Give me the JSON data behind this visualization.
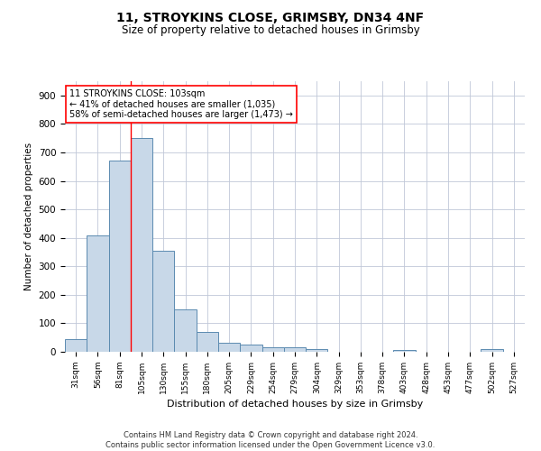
{
  "title_line1": "11, STROYKINS CLOSE, GRIMSBY, DN34 4NF",
  "title_line2": "Size of property relative to detached houses in Grimsby",
  "xlabel": "Distribution of detached houses by size in Grimsby",
  "ylabel": "Number of detached properties",
  "footnote": "Contains HM Land Registry data © Crown copyright and database right 2024.\nContains public sector information licensed under the Open Government Licence v3.0.",
  "categories": [
    "31sqm",
    "56sqm",
    "81sqm",
    "105sqm",
    "130sqm",
    "155sqm",
    "180sqm",
    "205sqm",
    "229sqm",
    "254sqm",
    "279sqm",
    "304sqm",
    "329sqm",
    "353sqm",
    "378sqm",
    "403sqm",
    "428sqm",
    "453sqm",
    "477sqm",
    "502sqm",
    "527sqm"
  ],
  "values": [
    45,
    410,
    670,
    750,
    355,
    148,
    70,
    33,
    25,
    15,
    15,
    8,
    0,
    0,
    0,
    5,
    0,
    0,
    0,
    8,
    0
  ],
  "bar_color": "#c8d8e8",
  "bar_edge_color": "#5b8ab0",
  "red_line_x": 2.5,
  "annotation_line1": "11 STROYKINS CLOSE: 103sqm",
  "annotation_line2": "← 41% of detached houses are smaller (1,035)",
  "annotation_line3": "58% of semi-detached houses are larger (1,473) →",
  "ylim": [
    0,
    950
  ],
  "yticks": [
    0,
    100,
    200,
    300,
    400,
    500,
    600,
    700,
    800,
    900
  ],
  "background_color": "#ffffff",
  "grid_color": "#c0c8d8",
  "fig_width": 6.0,
  "fig_height": 5.0,
  "dpi": 100
}
